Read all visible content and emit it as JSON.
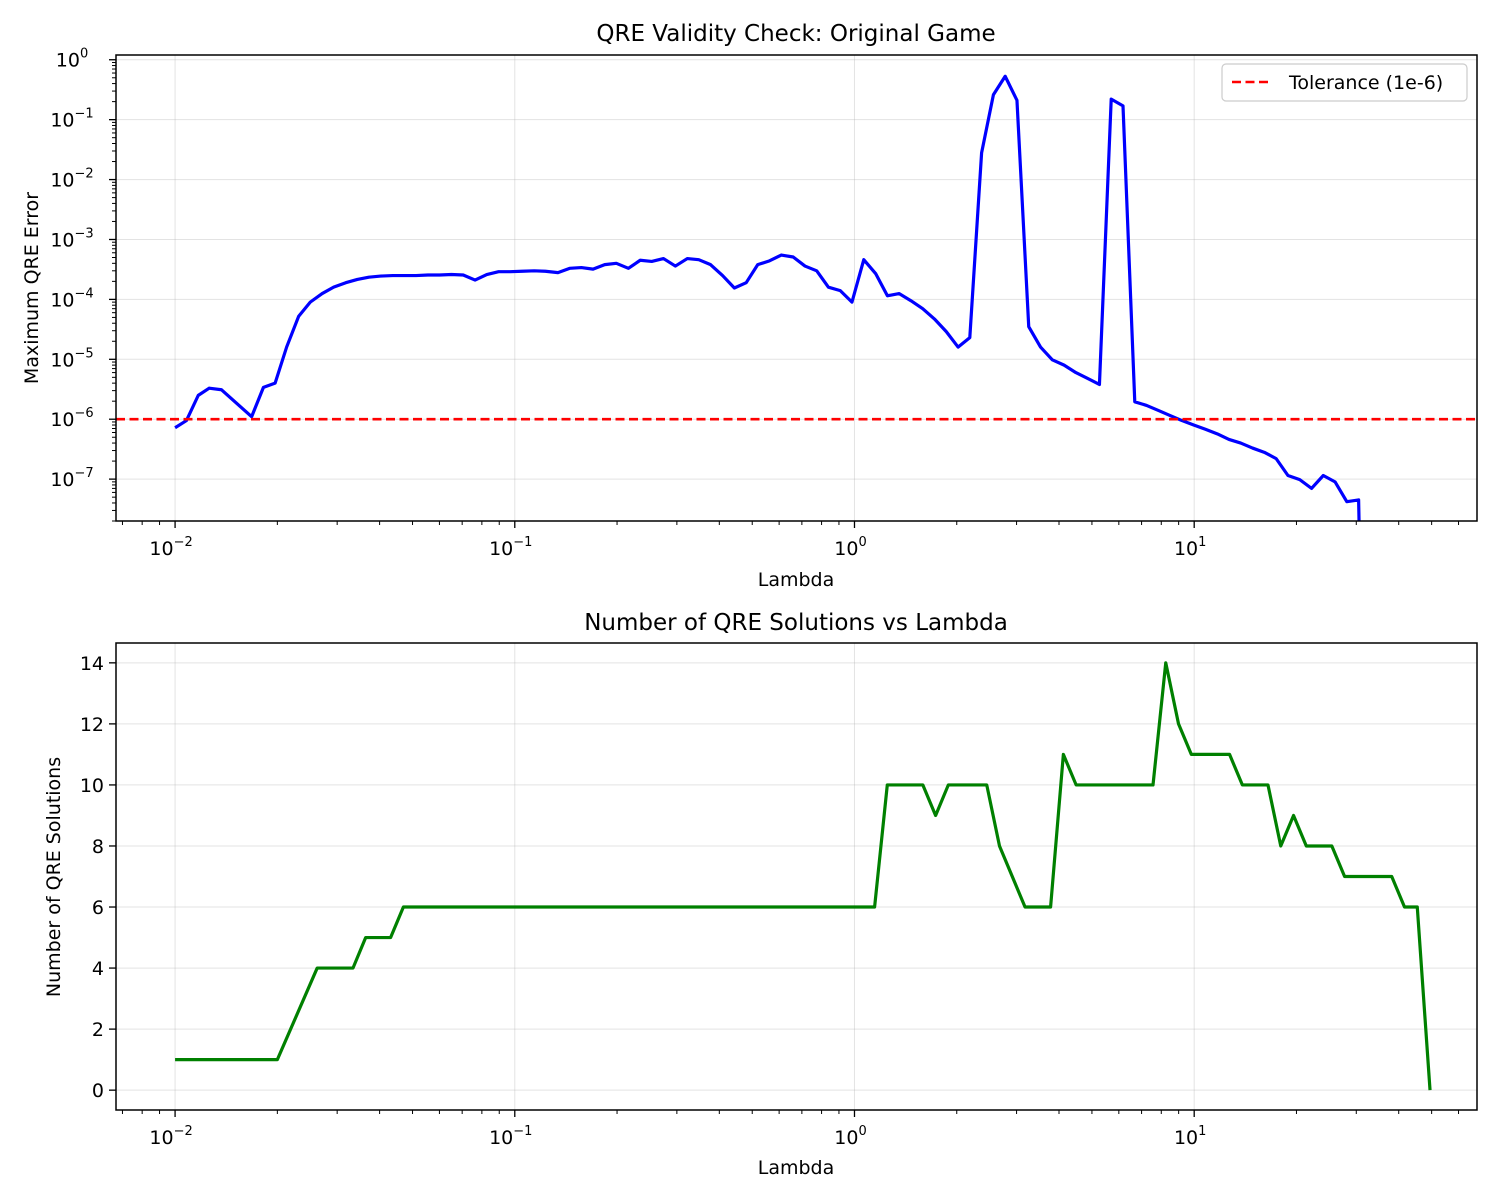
{
  "chart_data": [
    {
      "type": "line",
      "title": "QRE Validity Check: Original Game",
      "xlabel": "Lambda",
      "ylabel": "Maximum QRE Error",
      "xscale": "log",
      "yscale": "log",
      "xlim": [
        0.0067,
        68
      ],
      "ylim": [
        2e-08,
        1.2
      ],
      "x_ticks": [
        {
          "value": 0.01,
          "mant": "10",
          "exp": "−2"
        },
        {
          "value": 0.1,
          "mant": "10",
          "exp": "−1"
        },
        {
          "value": 1,
          "mant": "10",
          "exp": "0"
        },
        {
          "value": 10,
          "mant": "10",
          "exp": "1"
        }
      ],
      "y_ticks": [
        {
          "value": 1,
          "mant": "10",
          "exp": "0"
        },
        {
          "value": 0.1,
          "mant": "10",
          "exp": "−1"
        },
        {
          "value": 0.01,
          "mant": "10",
          "exp": "−2"
        },
        {
          "value": 0.001,
          "mant": "10",
          "exp": "−3"
        },
        {
          "value": 0.0001,
          "mant": "10",
          "exp": "−4"
        },
        {
          "value": 1e-05,
          "mant": "10",
          "exp": "−5"
        },
        {
          "value": 1e-06,
          "mant": "10",
          "exp": "−6"
        },
        {
          "value": 1e-07,
          "mant": "10",
          "exp": "−7"
        }
      ],
      "grid": true,
      "legend": "upper right",
      "series": [
        {
          "color": "#0000ff",
          "points": [
            [
              0.01,
              7.2e-07
            ],
            [
              0.0108,
              9.5e-07
            ],
            [
              0.0117,
              2.5e-06
            ],
            [
              0.0126,
              3.3e-06
            ],
            [
              0.0137,
              3.1e-06
            ],
            [
              0.0168,
              1.1e-06
            ],
            [
              0.0182,
              3.4e-06
            ],
            [
              0.0197,
              4e-06
            ],
            [
              0.0213,
              1.6e-05
            ],
            [
              0.0231,
              5.2e-05
            ],
            [
              0.025,
              9e-05
            ],
            [
              0.0271,
              0.000125
            ],
            [
              0.0293,
              0.00016
            ],
            [
              0.0318,
              0.00019
            ],
            [
              0.0344,
              0.000215
            ],
            [
              0.0372,
              0.000235
            ],
            [
              0.0403,
              0.000245
            ],
            [
              0.0437,
              0.00025
            ],
            [
              0.0473,
              0.00025
            ],
            [
              0.0512,
              0.00025
            ],
            [
              0.0555,
              0.000255
            ],
            [
              0.0601,
              0.000255
            ],
            [
              0.0651,
              0.00026
            ],
            [
              0.0705,
              0.000255
            ],
            [
              0.0764,
              0.00021
            ],
            [
              0.0827,
              0.00026
            ],
            [
              0.0896,
              0.00029
            ],
            [
              0.097,
              0.00029
            ],
            [
              0.105,
              0.000295
            ],
            [
              0.114,
              0.0003
            ],
            [
              0.123,
              0.000295
            ],
            [
              0.134,
              0.00028
            ],
            [
              0.145,
              0.00033
            ],
            [
              0.157,
              0.00034
            ],
            [
              0.17,
              0.00032
            ],
            [
              0.184,
              0.00038
            ],
            [
              0.199,
              0.0004
            ],
            [
              0.216,
              0.00033
            ],
            [
              0.234,
              0.00045
            ],
            [
              0.253,
              0.00043
            ],
            [
              0.274,
              0.00048
            ],
            [
              0.297,
              0.00036
            ],
            [
              0.322,
              0.00048
            ],
            [
              0.348,
              0.00046
            ],
            [
              0.377,
              0.00038
            ],
            [
              0.409,
              0.00025
            ],
            [
              0.443,
              0.000155
            ],
            [
              0.48,
              0.00019
            ],
            [
              0.519,
              0.00038
            ],
            [
              0.562,
              0.00044
            ],
            [
              0.609,
              0.00055
            ],
            [
              0.66,
              0.00051
            ],
            [
              0.715,
              0.00036
            ],
            [
              0.774,
              0.0003
            ],
            [
              0.838,
              0.00016
            ],
            [
              0.908,
              0.00014
            ],
            [
              0.983,
              9e-05
            ],
            [
              1.065,
              0.00046
            ],
            [
              1.154,
              0.00027
            ],
            [
              1.25,
              0.000115
            ],
            [
              1.354,
              0.000125
            ],
            [
              1.466,
              9.5e-05
            ],
            [
              1.588,
              7e-05
            ],
            [
              1.72,
              4.7e-05
            ],
            [
              1.863,
              2.9e-05
            ],
            [
              2.018,
              1.6e-05
            ],
            [
              2.185,
              2.3e-05
            ],
            [
              2.367,
              0.028
            ],
            [
              2.564,
              0.26
            ],
            [
              2.777,
              0.53
            ],
            [
              3.008,
              0.21
            ],
            [
              3.258,
              3.5e-05
            ],
            [
              3.529,
              1.6e-05
            ],
            [
              3.822,
              9.8e-06
            ],
            [
              4.14,
              8e-06
            ],
            [
              4.484,
              6e-06
            ],
            [
              4.857,
              4.8e-06
            ],
            [
              5.261,
              3.8e-06
            ],
            [
              5.698,
              0.22
            ],
            [
              6.172,
              0.17
            ],
            [
              6.685,
              1.95e-06
            ],
            [
              7.241,
              1.7e-06
            ],
            [
              7.843,
              1.4e-06
            ],
            [
              8.495,
              1.15e-06
            ],
            [
              9.201,
              9.5e-07
            ],
            [
              9.966,
              8e-07
            ],
            [
              10.79,
              6.8e-07
            ],
            [
              11.69,
              5.7e-07
            ],
            [
              12.66,
              4.6e-07
            ],
            [
              13.71,
              4e-07
            ],
            [
              14.85,
              3.3e-07
            ],
            [
              16.09,
              2.8e-07
            ],
            [
              17.43,
              2.2e-07
            ],
            [
              18.88,
              1.15e-07
            ],
            [
              20.45,
              9.8e-08
            ],
            [
              22.15,
              7e-08
            ],
            [
              23.99,
              1.15e-07
            ],
            [
              25.98,
              9e-08
            ],
            [
              28.14,
              4.2e-08
            ],
            [
              30.48,
              4.5e-08
            ],
            [
              30.6,
              1.5e-08
            ]
          ]
        },
        {
          "name": "Tolerance (1e-6)",
          "color": "#ff0000",
          "dashed": true,
          "hline": 1e-06
        }
      ]
    },
    {
      "type": "line",
      "title": "Number of QRE Solutions vs Lambda",
      "xlabel": "Lambda",
      "ylabel": "Number of QRE Solutions",
      "xscale": "log",
      "yscale": "linear",
      "xlim": [
        0.0067,
        68
      ],
      "ylim": [
        -0.65,
        14.65
      ],
      "x_ticks": [
        {
          "value": 0.01,
          "mant": "10",
          "exp": "−2"
        },
        {
          "value": 0.1,
          "mant": "10",
          "exp": "−1"
        },
        {
          "value": 1,
          "mant": "10",
          "exp": "0"
        },
        {
          "value": 10,
          "mant": "10",
          "exp": "1"
        }
      ],
      "y_ticks": [
        {
          "value": 0,
          "label": "0"
        },
        {
          "value": 2,
          "label": "2"
        },
        {
          "value": 4,
          "label": "4"
        },
        {
          "value": 6,
          "label": "6"
        },
        {
          "value": 8,
          "label": "8"
        },
        {
          "value": 10,
          "label": "10"
        },
        {
          "value": 12,
          "label": "12"
        },
        {
          "value": 14,
          "label": "14"
        }
      ],
      "grid": true,
      "series": [
        {
          "color": "#008000",
          "points": [
            [
              0.01,
              1
            ],
            [
              0.02,
              1
            ],
            [
              0.0262,
              4
            ],
            [
              0.0334,
              4
            ],
            [
              0.0364,
              5
            ],
            [
              0.0431,
              5
            ],
            [
              0.047,
              6
            ],
            [
              1.146,
              6
            ],
            [
              1.249,
              10
            ],
            [
              1.589,
              10
            ],
            [
              1.733,
              9
            ],
            [
              1.889,
              10
            ],
            [
              2.451,
              10
            ],
            [
              2.672,
              8
            ],
            [
              3.177,
              6
            ],
            [
              3.778,
              6
            ],
            [
              4.12,
              11
            ],
            [
              4.492,
              10
            ],
            [
              7.564,
              10
            ],
            [
              8.247,
              14
            ],
            [
              8.993,
              12
            ],
            [
              9.806,
              11
            ],
            [
              12.71,
              11
            ],
            [
              13.86,
              10
            ],
            [
              16.49,
              10
            ],
            [
              17.98,
              8
            ],
            [
              19.61,
              9
            ],
            [
              21.38,
              8
            ],
            [
              25.42,
              8
            ],
            [
              27.72,
              7
            ],
            [
              38.15,
              7
            ],
            [
              41.6,
              6
            ],
            [
              45.36,
              6
            ],
            [
              49.46,
              0
            ]
          ]
        }
      ]
    }
  ]
}
